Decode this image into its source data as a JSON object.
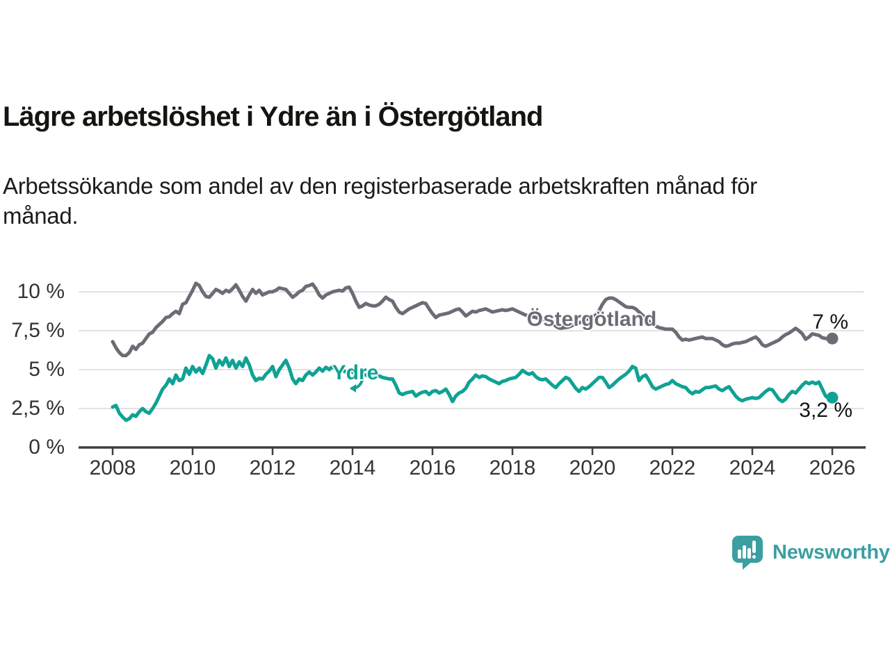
{
  "title": "Lägre arbetslöshet i Ydre än i Östergötland",
  "subtitle": {
    "line1": "Arbetssökande som andel av den registerbaserade arbetskraften månad för",
    "line2": "månad."
  },
  "branding": {
    "name": "Newsworthy"
  },
  "colors": {
    "oster_line": "#6f6b75",
    "ydre_line": "#0fa294",
    "gridline": "#d8d8d8",
    "axis": "#3e3e3e",
    "brand_teal": "#3b9fa1"
  },
  "chart_data": {
    "type": "line",
    "title": "Lägre arbetslöshet i Ydre än i Östergötland",
    "xlabel": "",
    "ylabel": "Arbetssökande som andel av den registerbaserade arbetskraften",
    "x_unit": "månad",
    "x_start_year": 2008,
    "x_end_year": 2026,
    "points_per_year": 12,
    "ylim": [
      0,
      10.6
    ],
    "grid": true,
    "legend": "inline-labels",
    "y_tick_labels": [
      "10 %",
      "7,5 %",
      "5 %",
      "2,5 %",
      "0 %"
    ],
    "x_tick_labels": [
      "2008",
      "2010",
      "2012",
      "2014",
      "2016",
      "2018",
      "2020",
      "2022",
      "2024",
      "2026"
    ],
    "series": [
      {
        "name": "Östergötland",
        "color": "#6f6b75",
        "end_label": "7 %",
        "end_value": 7.0,
        "values": [
          6.8,
          6.4,
          6.1,
          5.9,
          5.9,
          6.1,
          6.5,
          6.3,
          6.6,
          6.7,
          7.0,
          7.3,
          7.4,
          7.7,
          7.9,
          8.1,
          8.35,
          8.4,
          8.6,
          8.75,
          8.6,
          9.2,
          9.3,
          9.7,
          10.1,
          10.55,
          10.4,
          10.0,
          9.7,
          9.65,
          9.9,
          10.15,
          10.05,
          9.9,
          10.1,
          10.0,
          10.2,
          10.45,
          10.1,
          9.7,
          9.4,
          9.8,
          10.15,
          9.9,
          10.1,
          9.8,
          9.9,
          10.0,
          10.0,
          10.1,
          10.25,
          10.2,
          10.15,
          9.9,
          9.65,
          9.8,
          10.0,
          10.1,
          10.35,
          10.4,
          10.5,
          10.2,
          9.8,
          9.6,
          9.8,
          9.9,
          10.0,
          10.05,
          10.1,
          10.05,
          10.25,
          10.3,
          9.9,
          9.4,
          9.0,
          9.1,
          9.25,
          9.15,
          9.1,
          9.1,
          9.2,
          9.4,
          9.65,
          9.5,
          9.4,
          9.0,
          8.7,
          8.6,
          8.75,
          8.9,
          9.0,
          9.1,
          9.2,
          9.3,
          9.25,
          8.9,
          8.6,
          8.35,
          8.5,
          8.55,
          8.6,
          8.65,
          8.75,
          8.85,
          8.9,
          8.7,
          8.45,
          8.6,
          8.75,
          8.7,
          8.8,
          8.85,
          8.9,
          8.8,
          8.7,
          8.75,
          8.8,
          8.85,
          8.8,
          8.85,
          8.9,
          8.8,
          8.7,
          8.6,
          8.5,
          8.45,
          8.4,
          8.35,
          8.3,
          8.25,
          8.2,
          8.15,
          8.1,
          8.0,
          7.9,
          7.75,
          7.7,
          7.75,
          7.85,
          7.9,
          8.0,
          8.1,
          8.2,
          8.3,
          8.4,
          8.5,
          8.8,
          9.2,
          9.5,
          9.6,
          9.6,
          9.5,
          9.35,
          9.2,
          9.05,
          9.0,
          9.0,
          8.9,
          8.7,
          8.5,
          8.3,
          8.1,
          7.9,
          7.8,
          7.7,
          7.65,
          7.6,
          7.6,
          7.6,
          7.4,
          7.1,
          6.9,
          6.95,
          6.9,
          6.95,
          7.0,
          7.05,
          7.1,
          7.0,
          7.0,
          7.0,
          6.9,
          6.8,
          6.6,
          6.5,
          6.55,
          6.65,
          6.7,
          6.7,
          6.75,
          6.8,
          6.9,
          7.0,
          7.1,
          6.9,
          6.6,
          6.5,
          6.6,
          6.7,
          6.8,
          6.9,
          7.1,
          7.25,
          7.35,
          7.5,
          7.65,
          7.5,
          7.3,
          6.95,
          7.1,
          7.3,
          7.25,
          7.2,
          7.05,
          7.0,
          7.0,
          7.0
        ]
      },
      {
        "name": "Ydre",
        "color": "#0fa294",
        "end_label": "3,2 %",
        "end_value": 3.2,
        "values": [
          2.6,
          2.7,
          2.2,
          1.95,
          1.75,
          1.85,
          2.1,
          2.0,
          2.3,
          2.5,
          2.3,
          2.2,
          2.5,
          2.85,
          3.3,
          3.75,
          4.0,
          4.4,
          4.1,
          4.65,
          4.3,
          4.4,
          5.1,
          4.7,
          5.2,
          4.85,
          5.1,
          4.75,
          5.3,
          5.9,
          5.7,
          5.1,
          5.6,
          5.3,
          5.75,
          5.2,
          5.6,
          5.1,
          5.5,
          5.2,
          5.75,
          5.3,
          4.65,
          4.3,
          4.45,
          4.4,
          4.7,
          4.9,
          5.2,
          4.55,
          5.0,
          5.3,
          5.6,
          5.1,
          4.4,
          4.1,
          4.4,
          4.3,
          4.65,
          4.85,
          4.65,
          4.85,
          5.1,
          4.9,
          5.15,
          5.0,
          5.2,
          5.0,
          4.9,
          4.95,
          4.85,
          4.85,
          4.85,
          4.7,
          4.75,
          4.7,
          4.65,
          4.6,
          4.55,
          4.5,
          4.6,
          4.5,
          4.45,
          4.4,
          4.4,
          4.0,
          3.5,
          3.4,
          3.5,
          3.55,
          3.6,
          3.3,
          3.45,
          3.55,
          3.6,
          3.4,
          3.6,
          3.65,
          3.5,
          3.6,
          3.75,
          3.4,
          2.95,
          3.3,
          3.5,
          3.6,
          3.8,
          4.2,
          4.4,
          4.65,
          4.5,
          4.6,
          4.55,
          4.4,
          4.3,
          4.2,
          4.1,
          4.25,
          4.3,
          4.4,
          4.45,
          4.5,
          4.7,
          4.95,
          4.8,
          4.7,
          4.8,
          4.55,
          4.4,
          4.35,
          4.4,
          4.2,
          4.0,
          3.85,
          4.1,
          4.3,
          4.5,
          4.4,
          4.1,
          3.8,
          3.6,
          3.85,
          3.75,
          3.9,
          4.1,
          4.3,
          4.5,
          4.5,
          4.2,
          3.85,
          4.0,
          4.2,
          4.4,
          4.55,
          4.7,
          4.9,
          5.2,
          5.1,
          4.3,
          4.55,
          4.65,
          4.3,
          3.9,
          3.75,
          3.85,
          3.95,
          4.05,
          4.1,
          4.3,
          4.1,
          4.0,
          3.9,
          3.85,
          3.6,
          3.45,
          3.6,
          3.55,
          3.7,
          3.85,
          3.85,
          3.9,
          3.95,
          3.75,
          3.65,
          3.8,
          3.9,
          3.6,
          3.3,
          3.1,
          3.0,
          3.1,
          3.15,
          3.2,
          3.15,
          3.2,
          3.4,
          3.6,
          3.75,
          3.7,
          3.4,
          3.1,
          2.95,
          3.1,
          3.4,
          3.6,
          3.5,
          3.75,
          4.0,
          4.2,
          4.1,
          4.2,
          4.1,
          4.2,
          3.75,
          3.3,
          3.15,
          3.2
        ]
      }
    ]
  }
}
